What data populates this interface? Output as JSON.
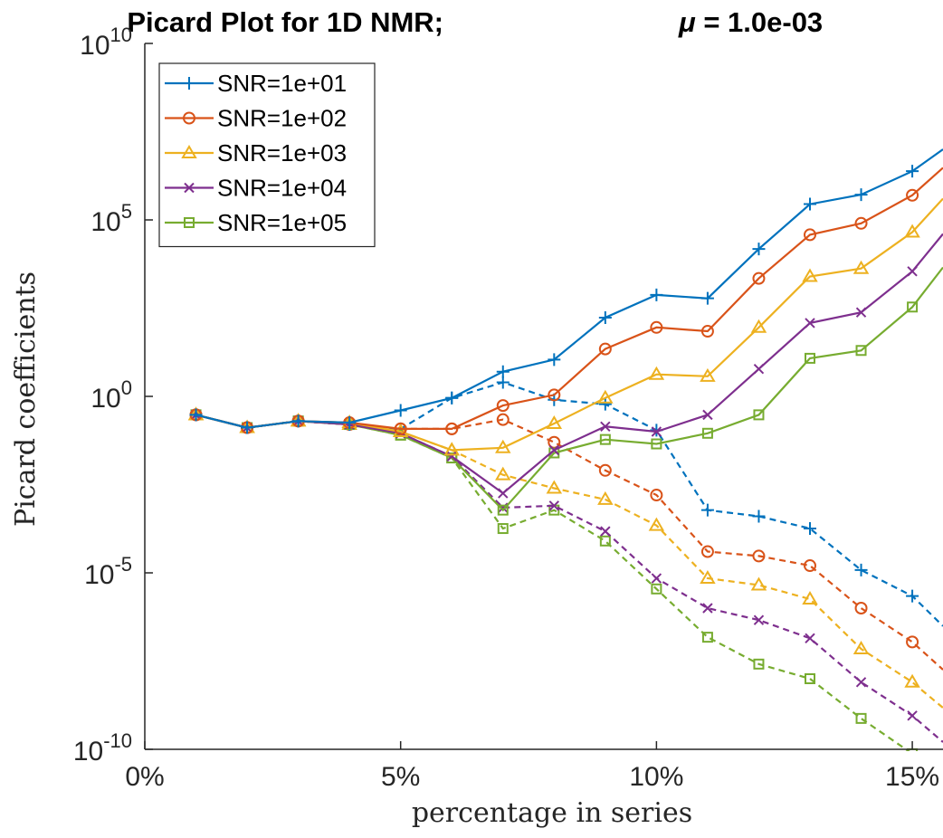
{
  "chart_data": {
    "type": "line",
    "title": "Picard Plot for 1D NMR;",
    "title_mu_symbol": "μ",
    "title_mu_value": " = 1.0e-03",
    "xlabel": "percentage in series",
    "ylabel": "Picard coefficients",
    "xscale": "linear",
    "yscale": "log",
    "xlim": [
      0,
      15.6
    ],
    "ylim": [
      1e-10,
      10000000000.0
    ],
    "x_ticks": [
      0,
      5,
      10,
      15
    ],
    "x_tick_labels": [
      "0%",
      "5%",
      "10%",
      "15%"
    ],
    "y_ticks": [
      {
        "value": 1e-10,
        "base": "10",
        "exp": "-10"
      },
      {
        "value": 1e-05,
        "base": "10",
        "exp": "-5"
      },
      {
        "value": 1,
        "base": "10",
        "exp": "0"
      },
      {
        "value": 100000.0,
        "base": "10",
        "exp": "5"
      },
      {
        "value": 10000000000.0,
        "base": "10",
        "exp": "10"
      }
    ],
    "grid": false,
    "legend_position": "top-left",
    "x": [
      1,
      2,
      3,
      4,
      5,
      6,
      7,
      8,
      9,
      10,
      11,
      12,
      13,
      14,
      15,
      15.6
    ],
    "series": [
      {
        "name": "SNR=1e+01",
        "color": "#0072BD",
        "marker": "plus",
        "solid": [
          0.3,
          0.13,
          0.2,
          0.18,
          0.4,
          0.9,
          5,
          11,
          170,
          750,
          600,
          15000,
          280000,
          520000,
          2400000,
          10000000
        ],
        "dashed": [
          0.3,
          0.13,
          0.2,
          0.16,
          0.12,
          0.9,
          2.5,
          0.8,
          0.6,
          0.11,
          0.0006,
          0.0004,
          0.00018,
          1.2e-05,
          2.2e-06,
          3.1e-07
        ]
      },
      {
        "name": "SNR=1e+02",
        "color": "#D95319",
        "marker": "circle",
        "solid": [
          0.3,
          0.13,
          0.2,
          0.18,
          0.12,
          0.12,
          0.55,
          1.1,
          22,
          90,
          70,
          2200,
          38000,
          80000,
          500000,
          3000000
        ],
        "dashed": [
          0.3,
          0.13,
          0.2,
          0.16,
          0.12,
          0.12,
          0.22,
          0.05,
          0.008,
          0.0016,
          4e-05,
          3e-05,
          1.6e-05,
          1e-06,
          1.1e-07,
          1.8e-08
        ]
      },
      {
        "name": "SNR=1e+03",
        "color": "#EDB120",
        "marker": "triangle",
        "solid": [
          0.3,
          0.13,
          0.2,
          0.18,
          0.1,
          0.03,
          0.035,
          0.17,
          0.9,
          4.2,
          3.7,
          90,
          2500,
          4200,
          45000,
          400000
        ],
        "dashed": [
          0.3,
          0.13,
          0.2,
          0.16,
          0.1,
          0.03,
          0.006,
          0.0025,
          0.0012,
          0.00022,
          7e-06,
          4.5e-06,
          1.8e-06,
          7e-08,
          8e-09,
          1.5e-09
        ]
      },
      {
        "name": "SNR=1e+04",
        "color": "#7E2F8E",
        "marker": "x",
        "solid": [
          0.3,
          0.13,
          0.2,
          0.16,
          0.09,
          0.02,
          0.0018,
          0.03,
          0.14,
          0.1,
          0.3,
          6,
          120,
          240,
          3500,
          40000
        ],
        "dashed": [
          0.3,
          0.13,
          0.2,
          0.16,
          0.09,
          0.02,
          0.0007,
          0.0008,
          0.00015,
          7e-06,
          1e-06,
          4.6e-07,
          1.4e-07,
          8e-09,
          9e-10,
          1.6e-10
        ]
      },
      {
        "name": "SNR=1e+05",
        "color": "#77AC30",
        "marker": "square",
        "solid": [
          0.3,
          0.13,
          0.2,
          0.16,
          0.08,
          0.018,
          0.0006,
          0.025,
          0.06,
          0.045,
          0.09,
          0.3,
          12,
          20,
          340,
          4500
        ],
        "dashed": [
          0.3,
          0.13,
          0.2,
          0.16,
          0.08,
          0.018,
          0.00018,
          0.0006,
          8e-05,
          3.5e-06,
          1.5e-07,
          2.6e-08,
          1e-08,
          7.5e-10,
          7.5e-11,
          1.8e-11
        ]
      }
    ]
  }
}
